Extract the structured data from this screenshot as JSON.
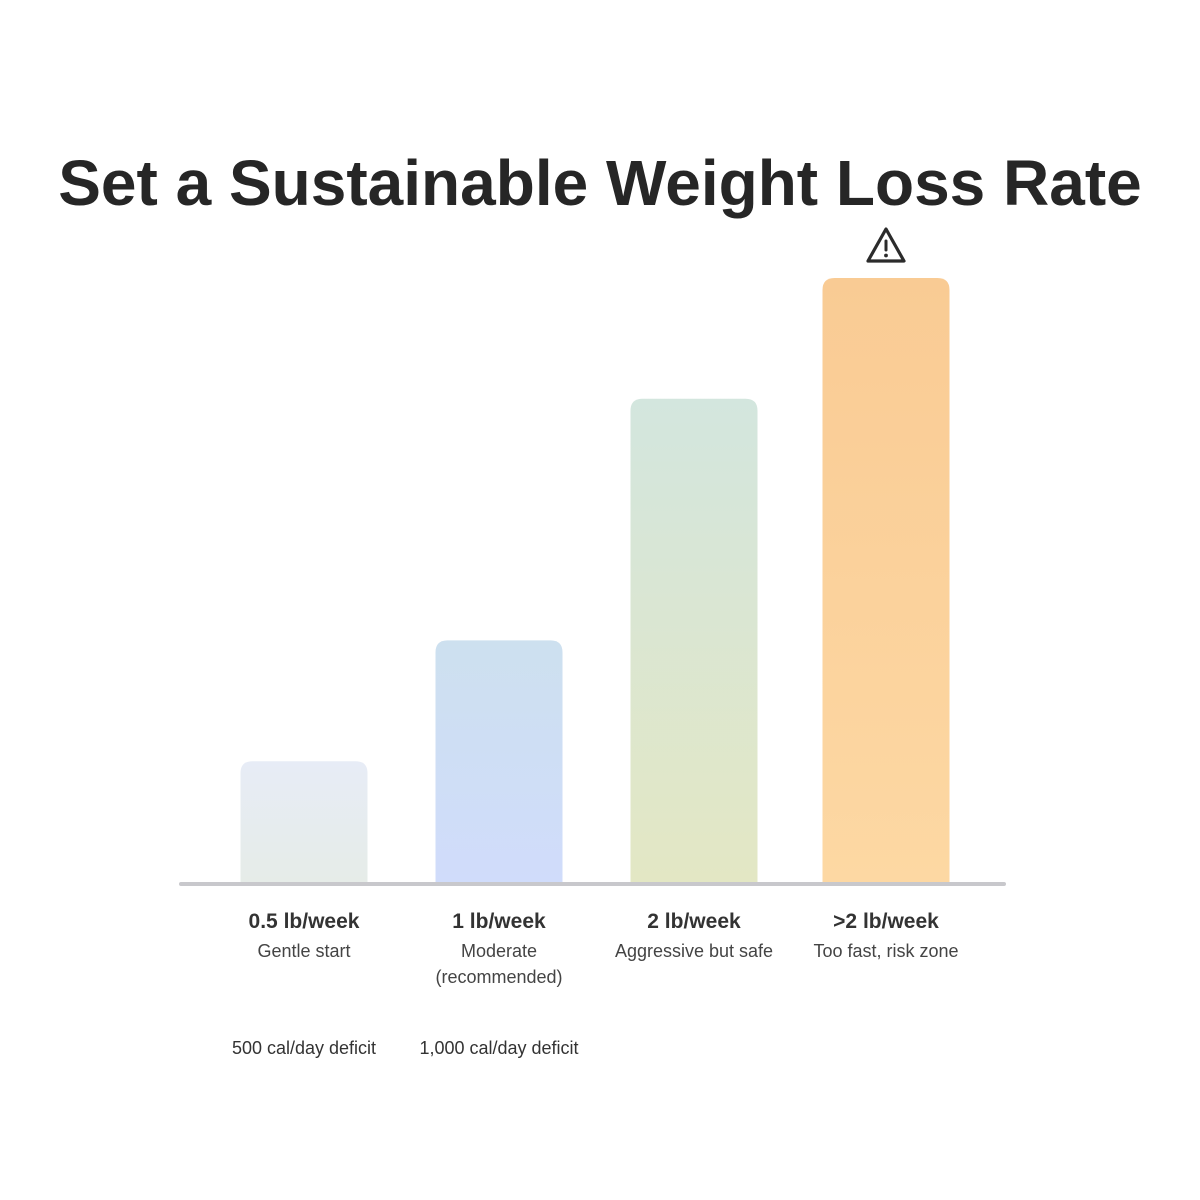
{
  "title": "Set a Sustainable Weight Loss Rate",
  "chart_data": {
    "type": "bar",
    "title": "Set a Sustainable Weight Loss Rate",
    "categories": [
      "0.5 lb/week",
      "1 lb/week",
      "2 lb/week",
      ">2 lb/week"
    ],
    "descriptions": [
      "Gentle start",
      "Moderate\n(recommended)",
      "Aggressive but safe",
      "Too fast, risk zone"
    ],
    "notes": [
      "500 cal/day deficit",
      "1,000 cal/day deficit",
      "",
      ""
    ],
    "values": [
      0.5,
      1,
      2,
      2.5
    ],
    "ylim": [
      0,
      2.9
    ],
    "axes_ticks": false,
    "grid": false,
    "warning_on_category": ">2 lb/week",
    "bar_gradients": [
      [
        "#e7ecf6",
        "#e6ece8"
      ],
      [
        "#cde0ef",
        "#d0dcfb"
      ],
      [
        "#d3e6de",
        "#e3e7c4"
      ],
      [
        "#f9cb94",
        "#fdd8a3"
      ]
    ],
    "baseline_color": "#c8c8cc",
    "warning_icon": "warning-triangle-icon"
  }
}
